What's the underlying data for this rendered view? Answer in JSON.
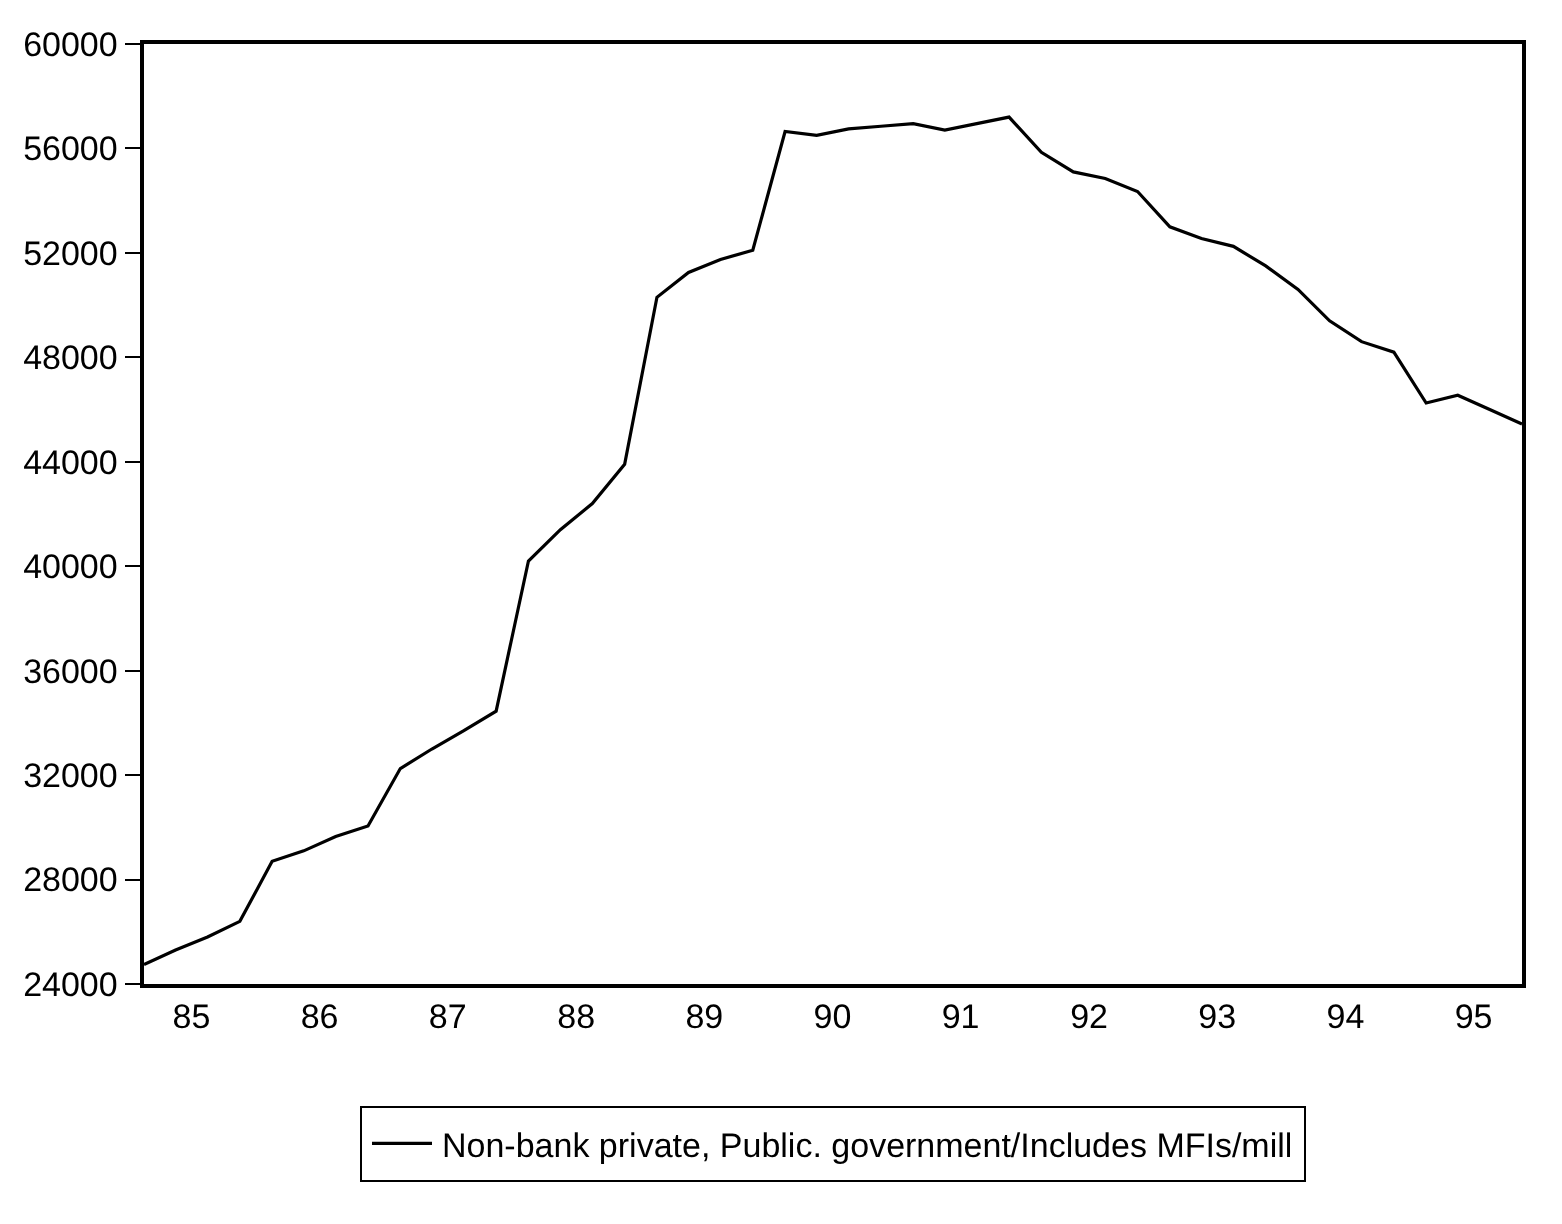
{
  "chart_data": {
    "type": "line",
    "x": [
      "1985-01",
      "1985-04",
      "1985-07",
      "1985-10",
      "1986-01",
      "1986-04",
      "1986-07",
      "1986-10",
      "1987-01",
      "1987-04",
      "1987-07",
      "1987-10",
      "1988-01",
      "1988-04",
      "1988-07",
      "1988-10",
      "1989-01",
      "1989-04",
      "1989-07",
      "1989-10",
      "1990-01",
      "1990-04",
      "1990-07",
      "1990-10",
      "1991-01",
      "1991-04",
      "1991-07",
      "1991-10",
      "1992-01",
      "1992-04",
      "1992-07",
      "1992-10",
      "1993-01",
      "1993-04",
      "1993-07",
      "1993-10",
      "1994-01",
      "1994-04",
      "1994-07",
      "1994-10",
      "1995-01",
      "1995-04",
      "1995-07",
      "1995-10"
    ],
    "series": [
      {
        "name": "Non-bank private, Public. government/Includes MFIs/mill",
        "color": "#000000",
        "values": [
          24750,
          25300,
          25800,
          26400,
          28700,
          29100,
          29650,
          30050,
          32250,
          33000,
          33700,
          34450,
          40200,
          41400,
          42400,
          43900,
          50300,
          51250,
          51750,
          52100,
          56650,
          56500,
          56750,
          56850,
          56950,
          56700,
          56950,
          57200,
          55850,
          55100,
          54850,
          54350,
          53000,
          52550,
          52250,
          51500,
          50600,
          49400,
          48600,
          48200,
          46250,
          46550,
          46000,
          45450
        ]
      }
    ],
    "xlim": [
      "1985-01",
      "1995-10"
    ],
    "xticks": [
      {
        "value": "1985-05-16",
        "label": "85"
      },
      {
        "value": "1986-05-16",
        "label": "86"
      },
      {
        "value": "1987-05-16",
        "label": "87"
      },
      {
        "value": "1988-05-16",
        "label": "88"
      },
      {
        "value": "1989-05-16",
        "label": "89"
      },
      {
        "value": "1990-05-16",
        "label": "90"
      },
      {
        "value": "1991-05-16",
        "label": "91"
      },
      {
        "value": "1992-05-16",
        "label": "92"
      },
      {
        "value": "1993-05-16",
        "label": "93"
      },
      {
        "value": "1994-05-16",
        "label": "94"
      },
      {
        "value": "1995-05-16",
        "label": "95"
      }
    ],
    "ylim": [
      24000,
      60000
    ],
    "yticks": [
      24000,
      28000,
      32000,
      36000,
      40000,
      44000,
      48000,
      52000,
      56000,
      60000
    ],
    "grid": false,
    "legend": "bottom"
  }
}
